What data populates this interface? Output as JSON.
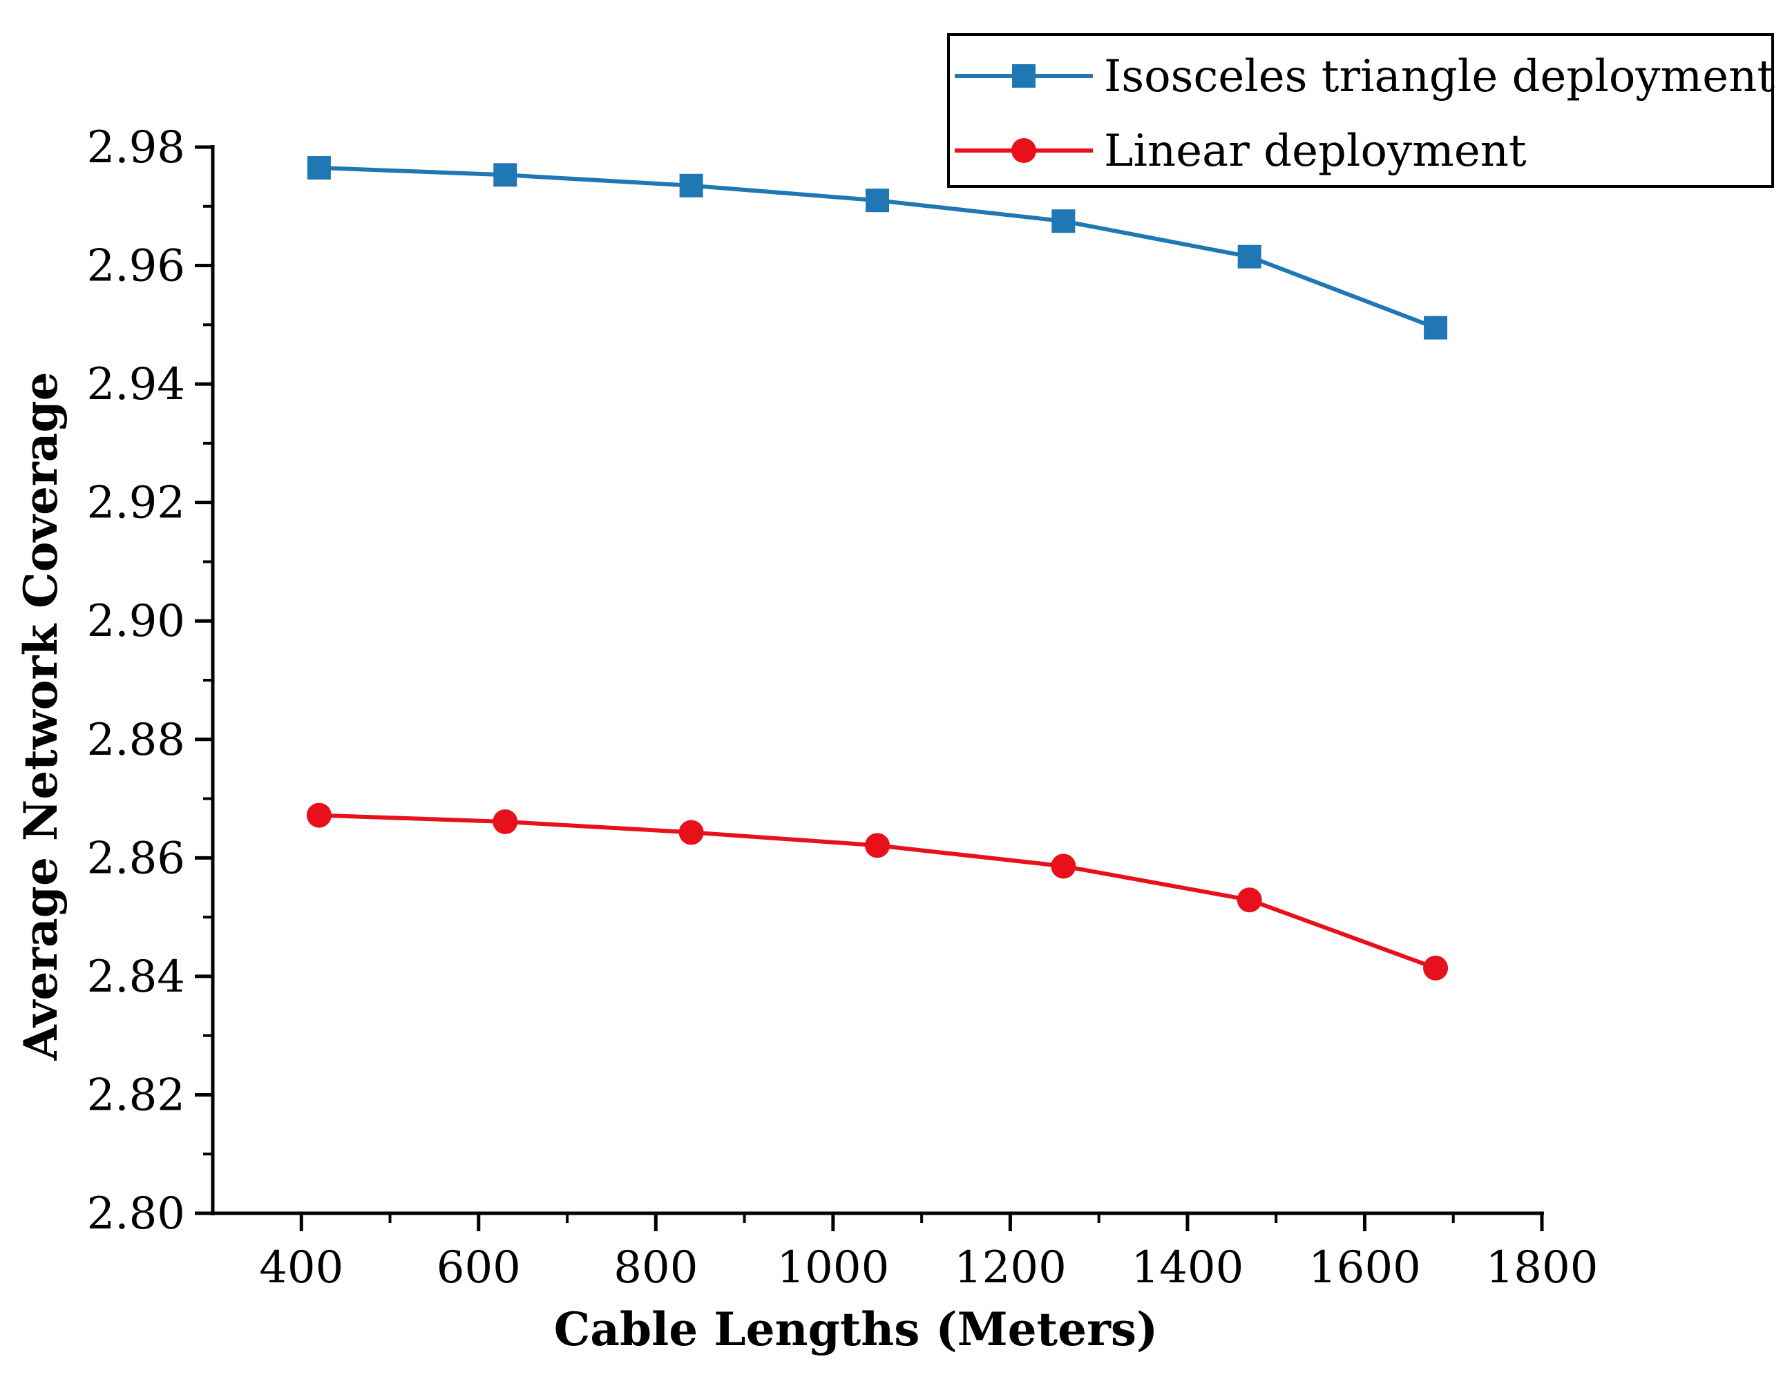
{
  "chart_data": {
    "type": "line",
    "title": "",
    "xlabel": "Cable Lengths (Meters)",
    "ylabel": "Average Network Coverage",
    "xlim": [
      300,
      1800
    ],
    "ylim": [
      2.8,
      2.98
    ],
    "x_ticks": [
      400,
      600,
      800,
      1000,
      1200,
      1400,
      1600,
      1800
    ],
    "x_tick_labels": [
      "400",
      "600",
      "800",
      "1000",
      "1200",
      "1400",
      "1600",
      "1800"
    ],
    "y_ticks": [
      2.8,
      2.82,
      2.84,
      2.86,
      2.88,
      2.9,
      2.92,
      2.94,
      2.96,
      2.98
    ],
    "y_tick_labels": [
      "2.80",
      "2.82",
      "2.84",
      "2.86",
      "2.88",
      "2.90",
      "2.92",
      "2.94",
      "2.96",
      "2.98"
    ],
    "x": [
      420,
      630,
      840,
      1050,
      1260,
      1470,
      1680
    ],
    "grid": false,
    "legend_position": "top-right",
    "series": [
      {
        "name": "Isosceles triangle deployment",
        "color": "#1f77b4",
        "marker": "square",
        "values": [
          2.9765,
          2.9753,
          2.9735,
          2.971,
          2.9675,
          2.9615,
          2.9495
        ]
      },
      {
        "name": "Linear deployment",
        "color": "#e8101a",
        "marker": "circle",
        "values": [
          2.8672,
          2.8661,
          2.8643,
          2.8621,
          2.8586,
          2.8529,
          2.8414
        ]
      }
    ]
  }
}
